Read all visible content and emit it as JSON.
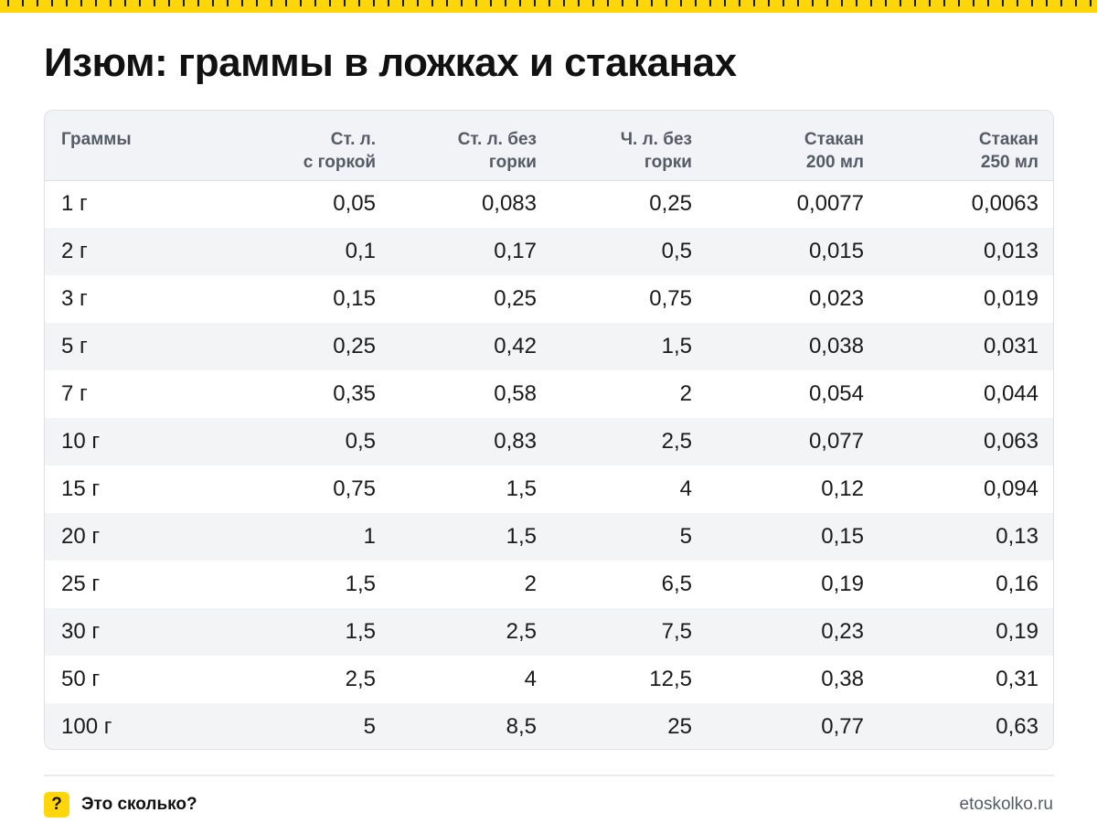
{
  "title": "Изюм: граммы в ложках и стаканах",
  "table": {
    "headers": [
      [
        "Граммы"
      ],
      [
        "Ст. л.",
        "с горкой"
      ],
      [
        "Ст. л. без",
        "горки"
      ],
      [
        "Ч. л. без",
        "горки"
      ],
      [
        "Стакан",
        "200 мл"
      ],
      [
        "Стакан",
        "250 мл"
      ]
    ],
    "rows": [
      [
        "1 г",
        "0,05",
        "0,083",
        "0,25",
        "0,0077",
        "0,0063"
      ],
      [
        "2 г",
        "0,1",
        "0,17",
        "0,5",
        "0,015",
        "0,013"
      ],
      [
        "3 г",
        "0,15",
        "0,25",
        "0,75",
        "0,023",
        "0,019"
      ],
      [
        "5 г",
        "0,25",
        "0,42",
        "1,5",
        "0,038",
        "0,031"
      ],
      [
        "7 г",
        "0,35",
        "0,58",
        "2",
        "0,054",
        "0,044"
      ],
      [
        "10 г",
        "0,5",
        "0,83",
        "2,5",
        "0,077",
        "0,063"
      ],
      [
        "15 г",
        "0,75",
        "1,5",
        "4",
        "0,12",
        "0,094"
      ],
      [
        "20 г",
        "1",
        "1,5",
        "5",
        "0,15",
        "0,13"
      ],
      [
        "25 г",
        "1,5",
        "2",
        "6,5",
        "0,19",
        "0,16"
      ],
      [
        "30 г",
        "1,5",
        "2,5",
        "7,5",
        "0,23",
        "0,19"
      ],
      [
        "50 г",
        "2,5",
        "4",
        "12,5",
        "0,38",
        "0,31"
      ],
      [
        "100 г",
        "5",
        "8,5",
        "25",
        "0,77",
        "0,63"
      ]
    ]
  },
  "footer": {
    "badge": "?",
    "brand": "Это сколько?",
    "site": "etoskolko.ru"
  },
  "colors": {
    "accent": "#ffd60a",
    "header_bg": "#f2f3f6",
    "stripe_bg": "#f3f4f6",
    "border": "#dcdfe4"
  }
}
